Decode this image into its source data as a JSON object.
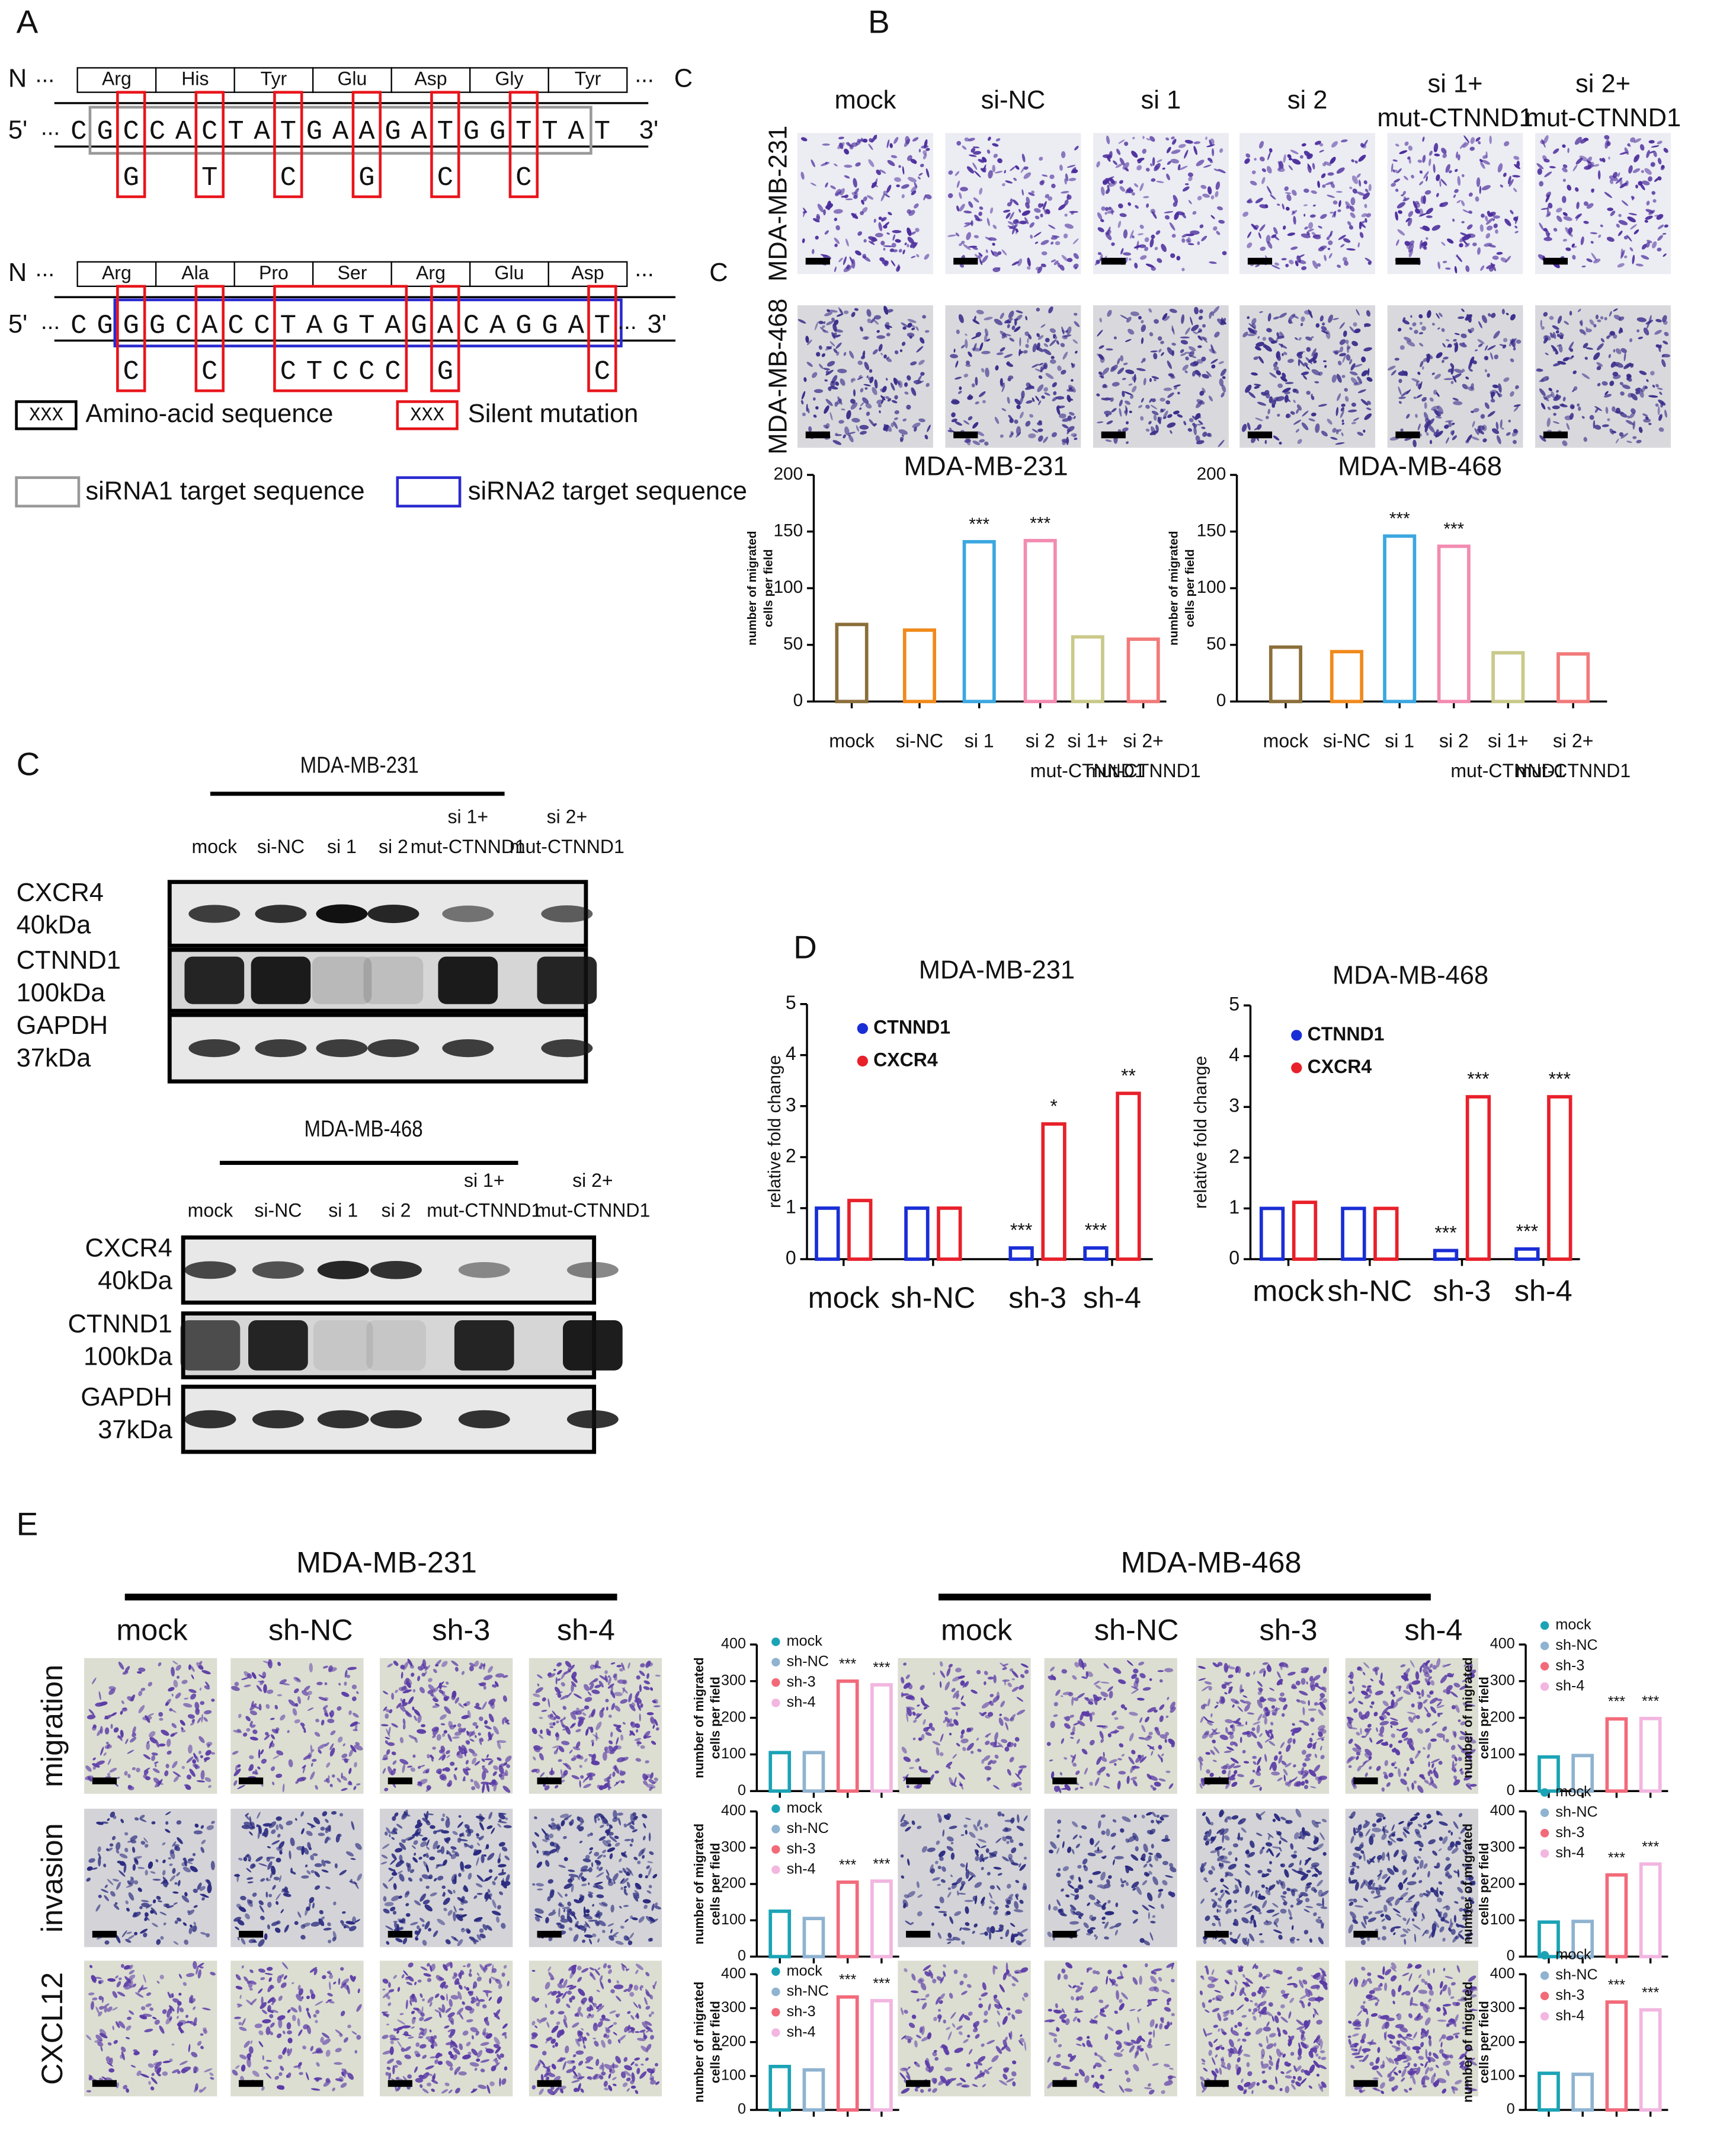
{
  "panel_labels": [
    "A",
    "B",
    "C",
    "D",
    "E"
  ],
  "sequence_panel": {
    "n_label": "N",
    "c_label": "C",
    "ellipsis": "...",
    "five_prime": "5'",
    "three_prime": "3'",
    "rows": [
      {
        "amino_acids": [
          "Arg",
          "His",
          "Tyr",
          "Glu",
          "Asp",
          "Gly",
          "Tyr"
        ],
        "segments": [
          {
            "text": "CG"
          },
          {
            "text": "C",
            "mutation": "G"
          },
          {
            "text": "CA"
          },
          {
            "text": "C",
            "mutation": "T"
          },
          {
            "text": "TA"
          },
          {
            "text": "T",
            "mutation": "C"
          },
          {
            "text": "GA"
          },
          {
            "text": "A",
            "mutation": "G"
          },
          {
            "text": "GA"
          },
          {
            "text": "T",
            "mutation": "C"
          },
          {
            "text": "GG"
          },
          {
            "text": "T",
            "mutation": "C"
          },
          {
            "text": "TAT"
          }
        ]
      },
      {
        "amino_acids": [
          "Arg",
          "Ala",
          "Pro",
          "Ser",
          "Arg",
          "Glu",
          "Asp"
        ],
        "segments": [
          {
            "text": "CG"
          },
          {
            "text": "G",
            "mutation": "C"
          },
          {
            "text": "GC"
          },
          {
            "text": "A",
            "mutation": "C"
          },
          {
            "text": "CC"
          },
          {
            "text": "TAGTA",
            "mutation": "CTCCC"
          },
          {
            "text": "G"
          },
          {
            "text": "A",
            "mutation": "G"
          },
          {
            "text": "CAGGA"
          },
          {
            "text": "T",
            "mutation": "C"
          }
        ]
      }
    ],
    "legend": {
      "box_text": "XXX",
      "amino_acid": "Amino-acid sequence",
      "silent": "Silent mutation",
      "sirna1": "siRNA1 target sequence",
      "sirna2": "siRNA2 target sequence"
    }
  },
  "migration_images": {
    "columns": [
      "mock",
      "si-NC",
      "si 1",
      "si 2",
      [
        "si 1+",
        "mut-CTNND1"
      ],
      [
        "si 2+",
        "mut-CTNND1"
      ]
    ],
    "rows": [
      "MDA-MB-231",
      "MDA-MB-468"
    ]
  },
  "blots": [
    {
      "title": "MDA-MB-231",
      "lanes": [
        "mock",
        "si-NC",
        "si 1",
        "si 2",
        [
          "si 1+",
          "mut-CTNND1"
        ],
        [
          "si 2+",
          "mut-CTNND1"
        ]
      ],
      "rows": [
        [
          "CXCR4",
          "40kDa"
        ],
        [
          "CTNND1",
          "100kDa"
        ],
        [
          "GAPDH",
          "37kDa"
        ]
      ]
    },
    {
      "title": "MDA-MB-468",
      "lanes": [
        "mock",
        "si-NC",
        "si 1",
        "si 2",
        [
          "si 1+",
          "mut-CTNND1"
        ],
        [
          "si 2+",
          "mut-CTNND1"
        ]
      ],
      "rows": [
        [
          "CXCR4",
          "40kDa"
        ],
        [
          "CTNND1",
          "100kDa"
        ],
        [
          "GAPDH",
          "37kDa"
        ]
      ]
    }
  ],
  "transwell_images": [
    {
      "title": "MDA-MB-231",
      "columns": [
        "mock",
        "sh-NC",
        "sh-3",
        "sh-4"
      ]
    },
    {
      "title": "MDA-MB-468",
      "columns": [
        "mock",
        "sh-NC",
        "sh-3",
        "sh-4"
      ]
    }
  ],
  "transwell_rows": [
    "migration",
    "invasion",
    "CXCL12"
  ],
  "chart_data": [
    {
      "type": "bar",
      "title": "MDA-MB-231",
      "y_label": [
        "number of  migrated",
        "cells per field"
      ],
      "categories": [
        "mock",
        "si-NC",
        "si 1",
        "si 2",
        [
          "si 1+",
          "mut-CTNND1"
        ],
        [
          "si 2+",
          "mut-CTNND1"
        ]
      ],
      "values": [
        68,
        63,
        141,
        142,
        57,
        55
      ],
      "annotations": [
        null,
        null,
        "***",
        "***",
        null,
        null
      ],
      "colors": [
        "#8b6f3a",
        "#f08a1c",
        "#3ba7e0",
        "#f28bb0",
        "#c9c98a",
        "#f27a7a"
      ],
      "ylim": [
        0,
        200
      ],
      "yticks": [
        0,
        50,
        100,
        150,
        200
      ]
    },
    {
      "type": "bar",
      "title": "MDA-MB-468",
      "y_label": [
        "number of  migrated",
        "cells per field"
      ],
      "categories": [
        "mock",
        "si-NC",
        "si 1",
        "si 2",
        [
          "si 1+",
          "mut-CTNND1"
        ],
        [
          "si 2+",
          "mut-CTNND1"
        ]
      ],
      "values": [
        48,
        44,
        146,
        137,
        43,
        42
      ],
      "annotations": [
        null,
        null,
        "***",
        "***",
        null,
        null
      ],
      "colors": [
        "#8b6f3a",
        "#f08a1c",
        "#3ba7e0",
        "#f28bb0",
        "#c9c98a",
        "#f27a7a"
      ],
      "ylim": [
        0,
        200
      ],
      "yticks": [
        0,
        50,
        100,
        150,
        200
      ]
    },
    {
      "type": "bar",
      "title": "MDA-MB-231",
      "y_label": "relative fold change",
      "legend": "upper left",
      "categories": [
        "mock",
        "sh-NC",
        "sh-3",
        "sh-4"
      ],
      "series": [
        {
          "name": "CTNND1",
          "color": "#1a2ed6",
          "values": [
            1.0,
            1.0,
            0.22,
            0.22
          ],
          "annotations": [
            null,
            null,
            "***",
            "***"
          ]
        },
        {
          "name": "CXCR4",
          "color": "#e8202a",
          "values": [
            1.15,
            1.0,
            2.65,
            3.25
          ],
          "annotations": [
            null,
            null,
            "*",
            "**"
          ]
        }
      ],
      "ylim": [
        0,
        5
      ],
      "yticks": [
        0,
        1,
        2,
        3,
        4,
        5
      ]
    },
    {
      "type": "bar",
      "title": "MDA-MB-468",
      "y_label": "relative fold change",
      "legend": "upper left",
      "categories": [
        "mock",
        "sh-NC",
        "sh-3",
        "sh-4"
      ],
      "series": [
        {
          "name": "CTNND1",
          "color": "#1a2ed6",
          "values": [
            1.0,
            1.0,
            0.17,
            0.2
          ],
          "annotations": [
            null,
            null,
            "***",
            "***"
          ]
        },
        {
          "name": "CXCR4",
          "color": "#e8202a",
          "values": [
            1.12,
            1.0,
            3.2,
            3.2
          ],
          "annotations": [
            null,
            null,
            "***",
            "***"
          ]
        }
      ],
      "ylim": [
        0,
        5
      ],
      "yticks": [
        0,
        1,
        2,
        3,
        4,
        5
      ]
    },
    {
      "type": "bar",
      "y_label": [
        "number of  migrated",
        "cells per field"
      ],
      "legend": "upper left",
      "categories": [
        "mock",
        "sh-NC",
        "sh-3",
        "sh-4"
      ],
      "colors": [
        "#1ba3b5",
        "#8fb3d0",
        "#f26a7a",
        "#f2b6e0"
      ],
      "values": [
        105,
        105,
        300,
        290
      ],
      "annotations": [
        null,
        null,
        "***",
        "***"
      ],
      "ylim": [
        0,
        400
      ],
      "yticks": [
        0,
        100,
        200,
        300,
        400
      ]
    },
    {
      "type": "bar",
      "y_label": [
        "number of  migrated",
        "cells per field"
      ],
      "legend": "upper left",
      "categories": [
        "mock",
        "sh-NC",
        "sh-3",
        "sh-4"
      ],
      "colors": [
        "#1ba3b5",
        "#8fb3d0",
        "#f26a7a",
        "#f2b6e0"
      ],
      "values": [
        125,
        105,
        205,
        208
      ],
      "annotations": [
        null,
        null,
        "***",
        "***"
      ],
      "ylim": [
        0,
        400
      ],
      "yticks": [
        0,
        100,
        200,
        300,
        400
      ]
    },
    {
      "type": "bar",
      "y_label": [
        "number of  migrated",
        "cells per field"
      ],
      "legend": "upper left",
      "categories": [
        "mock",
        "sh-NC",
        "sh-3",
        "sh-4"
      ],
      "colors": [
        "#1ba3b5",
        "#8fb3d0",
        "#f26a7a",
        "#f2b6e0"
      ],
      "values": [
        128,
        118,
        333,
        322
      ],
      "annotations": [
        null,
        null,
        "***",
        "***"
      ],
      "ylim": [
        0,
        400
      ],
      "yticks": [
        0,
        100,
        200,
        300,
        400
      ]
    },
    {
      "type": "bar",
      "y_label": [
        "number of  migrated",
        "cells per field"
      ],
      "legend": "upper left",
      "categories": [
        "mock",
        "sh-NC",
        "sh-3",
        "sh-4"
      ],
      "colors": [
        "#1ba3b5",
        "#8fb3d0",
        "#f26a7a",
        "#f2b6e0"
      ],
      "values": [
        93,
        97,
        197,
        198
      ],
      "annotations": [
        null,
        null,
        "***",
        "***"
      ],
      "ylim": [
        0,
        400
      ],
      "yticks": [
        0,
        100,
        200,
        300,
        400
      ]
    },
    {
      "type": "bar",
      "y_label": [
        "number of  migrated",
        "cells per field"
      ],
      "legend": "upper left",
      "categories": [
        "mock",
        "sh-NC",
        "sh-3",
        "sh-4"
      ],
      "colors": [
        "#1ba3b5",
        "#8fb3d0",
        "#f26a7a",
        "#f2b6e0"
      ],
      "values": [
        95,
        97,
        225,
        255
      ],
      "annotations": [
        null,
        null,
        "***",
        "***"
      ],
      "ylim": [
        0,
        400
      ],
      "yticks": [
        0,
        100,
        200,
        300,
        400
      ]
    },
    {
      "type": "bar",
      "y_label": [
        "number of  migrated",
        "cells per field"
      ],
      "legend": "upper left",
      "categories": [
        "mock",
        "sh-NC",
        "sh-3",
        "sh-4"
      ],
      "colors": [
        "#1ba3b5",
        "#8fb3d0",
        "#f26a7a",
        "#f2b6e0"
      ],
      "values": [
        108,
        105,
        318,
        295
      ],
      "annotations": [
        null,
        null,
        "***",
        "***"
      ],
      "ylim": [
        0,
        400
      ],
      "yticks": [
        0,
        100,
        200,
        300,
        400
      ]
    }
  ]
}
